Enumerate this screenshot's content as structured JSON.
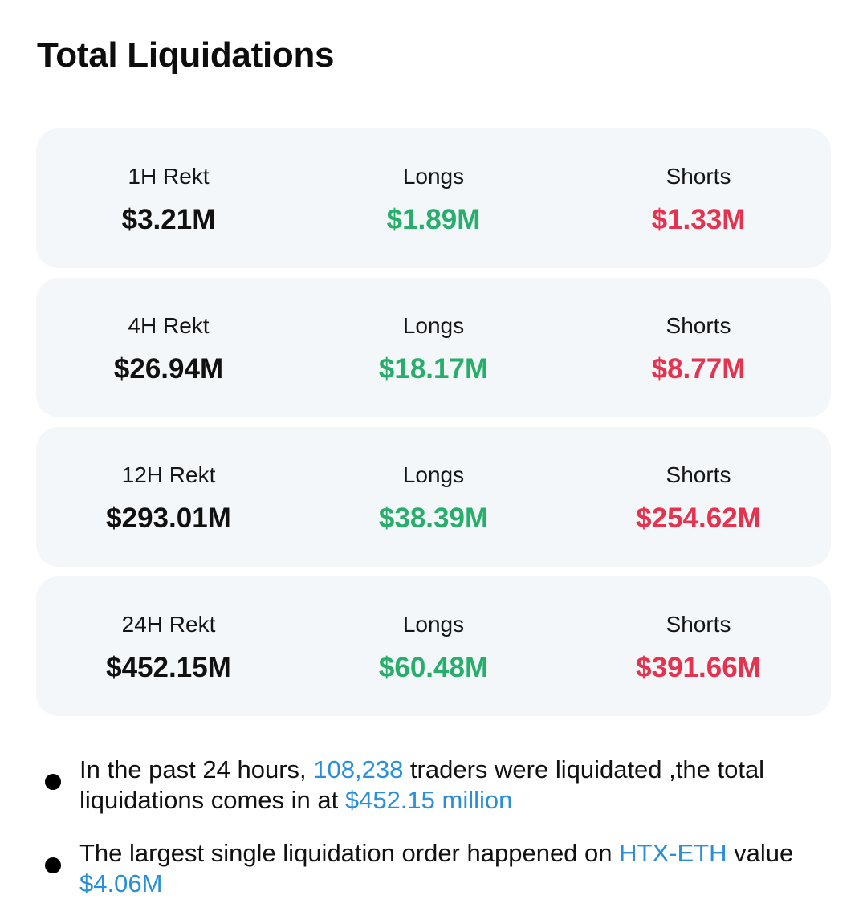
{
  "title": "Total Liquidations",
  "rows": [
    {
      "period_label": "1H Rekt",
      "total": "$3.21M",
      "longs_label": "Longs",
      "longs": "$1.89M",
      "shorts_label": "Shorts",
      "shorts": "$1.33M"
    },
    {
      "period_label": "4H Rekt",
      "total": "$26.94M",
      "longs_label": "Longs",
      "longs": "$18.17M",
      "shorts_label": "Shorts",
      "shorts": "$8.77M"
    },
    {
      "period_label": "12H Rekt",
      "total": "$293.01M",
      "longs_label": "Longs",
      "longs": "$38.39M",
      "shorts_label": "Shorts",
      "shorts": "$254.62M"
    },
    {
      "period_label": "24H Rekt",
      "total": "$452.15M",
      "longs_label": "Longs",
      "longs": "$60.48M",
      "shorts_label": "Shorts",
      "shorts": "$391.66M"
    }
  ],
  "notes": [
    {
      "part1": "In the past 24 hours, ",
      "traders": "108,238",
      "part2": " traders were liquidated ,the total liquidations comes in at ",
      "amount": "$452.15 million"
    },
    {
      "part1": "The largest single liquidation order happened on ",
      "exchange": "HTX-ETH",
      "part2": " value ",
      "amount": "$4.06M"
    }
  ],
  "colors": {
    "longs": "#27ae6a",
    "shorts": "#e5334f",
    "highlight": "#2b8fd8",
    "card_bg": "#f3f7fa"
  }
}
